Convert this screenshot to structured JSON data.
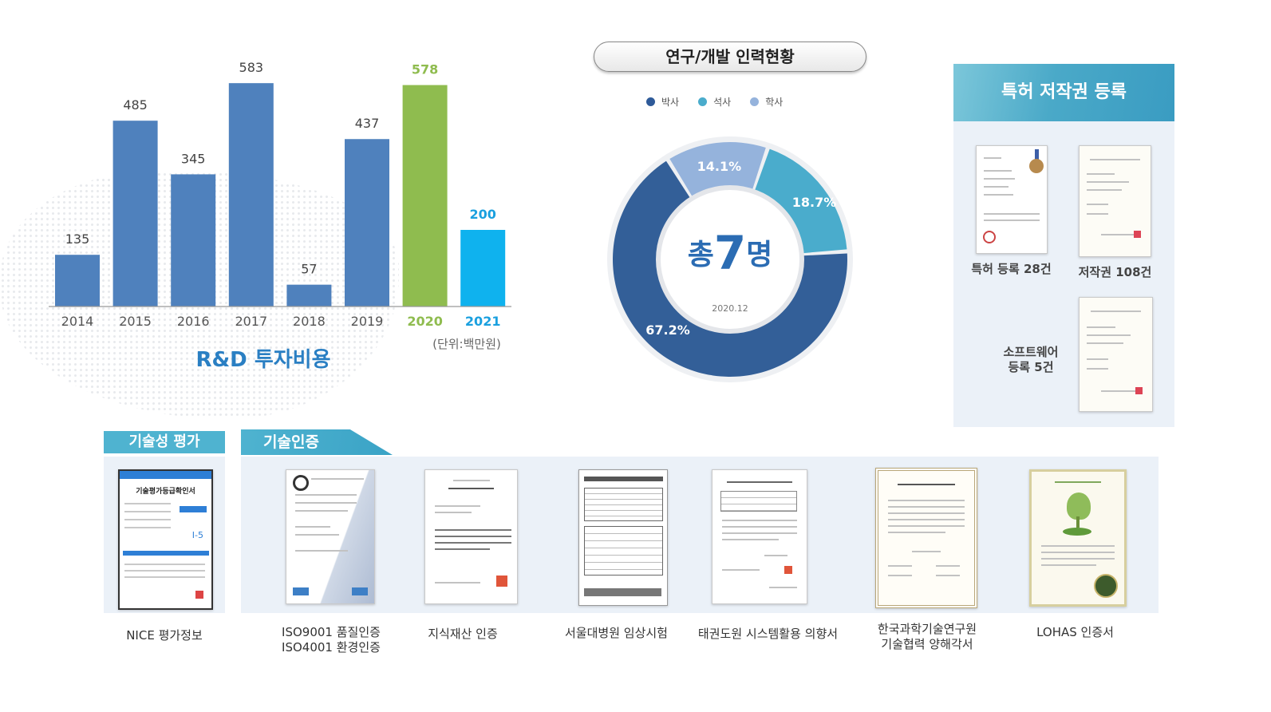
{
  "chart_data": [
    {
      "type": "bar",
      "categories": [
        "2014",
        "2015",
        "2016",
        "2017",
        "2018",
        "2019",
        "2020",
        "2021"
      ],
      "values": [
        135,
        485,
        345,
        583,
        57,
        437,
        578,
        200
      ],
      "title": "R&D 투자비용",
      "unit_note": "(단위:백만원)",
      "bar_colors": [
        "#4f81bd",
        "#4f81bd",
        "#4f81bd",
        "#4f81bd",
        "#4f81bd",
        "#4f81bd",
        "#8fbc4f",
        "#0fb2ee"
      ],
      "label_colors": [
        "#444",
        "#444",
        "#444",
        "#444",
        "#444",
        "#444",
        "#8fbc4f",
        "#1aa0df"
      ],
      "ylim": [
        0,
        600
      ],
      "grid": false
    },
    {
      "type": "pie",
      "title": "연구/개발 인력현황",
      "legend": [
        "박사",
        "석사",
        "학사"
      ],
      "legend_colors": [
        "#2e5a99",
        "#4aaccc",
        "#95b3dc"
      ],
      "slices": [
        {
          "label": "박사",
          "value": 67.2,
          "display": "67.2%",
          "color": "#335f98"
        },
        {
          "label": "석사",
          "value": 18.7,
          "display": "18.7%",
          "color": "#4aaccc"
        },
        {
          "label": "학사",
          "value": 14.1,
          "display": "14.1%",
          "color": "#95b3dc"
        }
      ],
      "center_prefix": "총",
      "center_number": "7",
      "center_suffix": "명",
      "center_date": "2020.12",
      "legend_position": "top"
    }
  ],
  "patent": {
    "header": "특허 저작권 등록",
    "items": [
      {
        "label_lines": [
          "특허 등록 28건"
        ]
      },
      {
        "label_lines": [
          "저작권 108건"
        ]
      },
      {
        "label_lines": [
          "소프트웨어",
          "등록 5건"
        ]
      }
    ]
  },
  "tech_eval": {
    "tab": "기술성 평가",
    "doc_title": "기술평가등급확인서",
    "grade": "I-5",
    "label": "NICE 평가정보"
  },
  "tech_cert": {
    "tab": "기술인증",
    "items": [
      {
        "label_lines": [
          "ISO9001 품질인증",
          "ISO4001 환경인증"
        ]
      },
      {
        "label_lines": [
          "지식재산 인증"
        ]
      },
      {
        "label_lines": [
          "서울대병원 임상시험"
        ]
      },
      {
        "label_lines": [
          "태권도원 시스템활용 의향서"
        ]
      },
      {
        "label_lines": [
          "한국과학기술연구원",
          "기술협력 양해각서"
        ]
      },
      {
        "label_lines": [
          "LOHAS 인증서"
        ]
      }
    ]
  },
  "colors": {
    "accent": "#4fb3d0",
    "panel_bg": "#ebf1f8",
    "title_blue": "#2a7fc3"
  }
}
